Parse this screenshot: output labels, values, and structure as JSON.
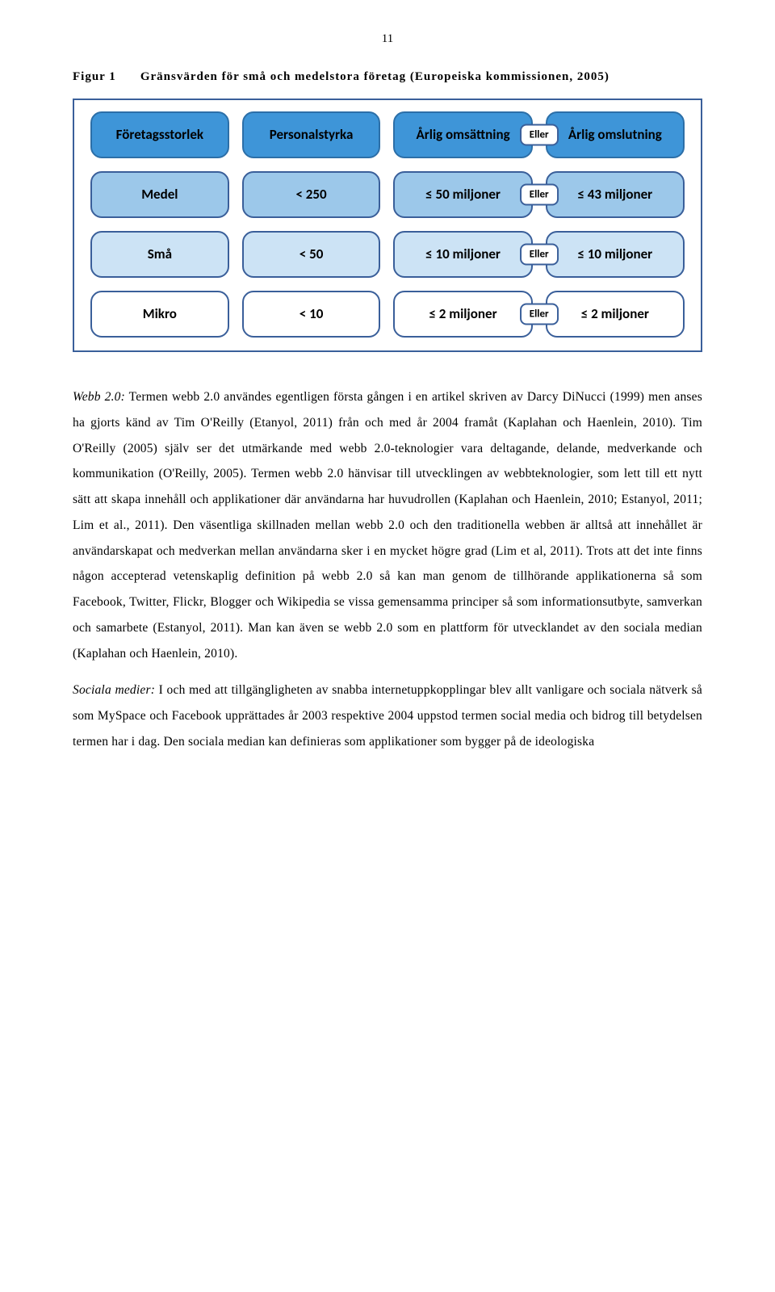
{
  "page_number": "11",
  "figure": {
    "label": "Figur 1",
    "title": "Gränsvärden för små och medelstora företag (Europeiska kommissionen, 2005)"
  },
  "diagram": {
    "eller": "Eller",
    "header": {
      "c1": "Företagsstorlek",
      "c2": "Personalstyrka",
      "c3": "Årlig omsättning",
      "c4": "Årlig omslutning"
    },
    "medel": {
      "c1": "Medel",
      "c2": "< 250",
      "c3": "≤ 50 miljoner",
      "c4": "≤ 43 miljoner"
    },
    "sma": {
      "c1": "Små",
      "c2": "< 50",
      "c3": "≤ 10 miljoner",
      "c4": "≤ 10 miljoner"
    },
    "mikro": {
      "c1": "Mikro",
      "c2": "< 10",
      "c3": "≤ 2 miljoner",
      "c4": "≤ 2 miljoner"
    }
  },
  "para1_term": "Webb 2.0:",
  "para1": " Termen webb 2.0 användes egentligen första gången i en artikel skriven av Darcy DiNucci (1999) men anses ha gjorts känd av Tim O'Reilly (Etanyol, 2011) från och med år 2004 framåt (Kaplahan och Haenlein, 2010). Tim O'Reilly (2005) själv ser det utmärkande med webb 2.0-teknologier vara deltagande, delande, medverkande och kommunikation (O'Reilly, 2005). Termen webb 2.0 hänvisar till utvecklingen av webbteknologier, som lett till ett nytt sätt att skapa innehåll och applikationer där användarna har huvudrollen (Kaplahan och Haenlein, 2010; Estanyol, 2011; Lim et al., 2011). Den väsentliga skillnaden mellan webb 2.0 och den traditionella webben är alltså att innehållet är användarskapat och medverkan mellan användarna sker i en mycket högre grad (Lim et al, 2011). Trots att det inte finns någon accepterad vetenskaplig definition på webb 2.0 så kan man genom de tillhörande applikationerna så som Facebook, Twitter, Flickr, Blogger och Wikipedia se vissa gemensamma principer så som informationsutbyte, samverkan och samarbete (Estanyol, 2011). Man kan även se webb 2.0 som en plattform för utvecklandet av den sociala median (Kaplahan och Haenlein, 2010).",
  "para2_term": "Sociala medier:",
  "para2": " I och med att tillgängligheten av snabba internetuppkopplingar blev allt vanligare och sociala nätverk så som MySpace och Facebook upprättades år 2003 respektive 2004 uppstod termen social media och bidrog till betydelsen termen har i dag. Den sociala median kan definieras som applikationer som bygger på de ideologiska"
}
